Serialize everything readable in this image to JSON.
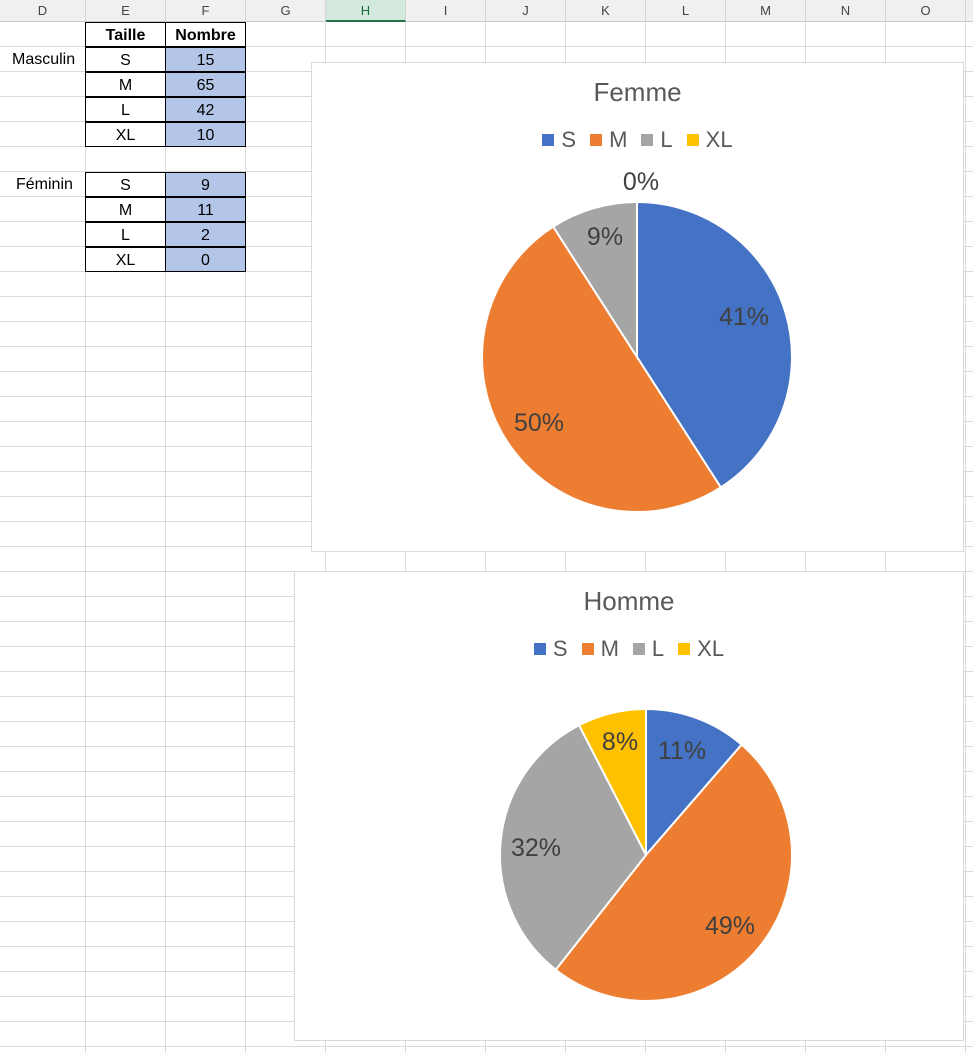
{
  "columns": [
    "D",
    "E",
    "F",
    "G",
    "H",
    "I",
    "J",
    "K",
    "L",
    "M",
    "N",
    "O"
  ],
  "selected_column": "H",
  "table": {
    "header": {
      "taille": "Taille",
      "nombre": "Nombre"
    },
    "masculin": {
      "label": "Masculin",
      "rows": [
        {
          "taille": "S",
          "nombre": "15"
        },
        {
          "taille": "M",
          "nombre": "65"
        },
        {
          "taille": "L",
          "nombre": "42"
        },
        {
          "taille": "XL",
          "nombre": "10"
        }
      ]
    },
    "feminin": {
      "label": "Féminin",
      "rows": [
        {
          "taille": "S",
          "nombre": "9"
        },
        {
          "taille": "M",
          "nombre": "11"
        },
        {
          "taille": "L",
          "nombre": "2"
        },
        {
          "taille": "XL",
          "nombre": "0"
        }
      ]
    }
  },
  "colors": {
    "S": "#4472c4",
    "M": "#ed7d31",
    "L": "#a5a5a5",
    "XL": "#ffc000"
  },
  "chart_data": [
    {
      "type": "pie",
      "title": "Femme",
      "categories": [
        "S",
        "M",
        "L",
        "XL"
      ],
      "values": [
        9,
        11,
        2,
        0
      ],
      "data_labels": [
        "41%",
        "50%",
        "9%",
        "0%"
      ],
      "legend": "top"
    },
    {
      "type": "pie",
      "title": "Homme",
      "categories": [
        "S",
        "M",
        "L",
        "XL"
      ],
      "values": [
        15,
        65,
        42,
        10
      ],
      "data_labels": [
        "11%",
        "49%",
        "32%",
        "8%"
      ],
      "legend": "top"
    }
  ]
}
